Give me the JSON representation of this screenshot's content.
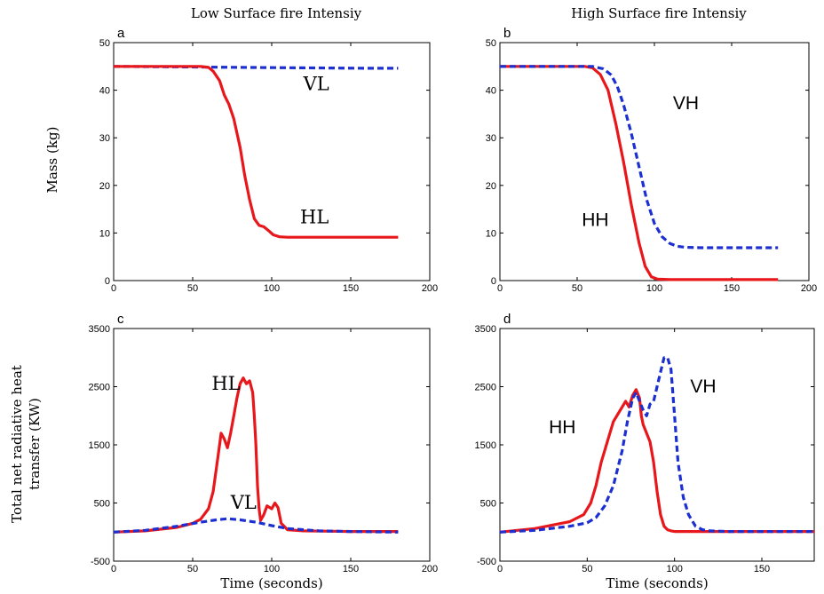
{
  "column_titles": [
    "Low Surface fire Intensiy",
    "High Surface fire Intensiy"
  ],
  "colors": {
    "red_series": "#e8171b",
    "blue_series": "#1c2fd1"
  },
  "chart_data": [
    {
      "id": "a",
      "type": "line",
      "panel_label": "a",
      "title": "",
      "xlabel": "",
      "ylabel": "Mass (kg)",
      "xlim": [
        0,
        200
      ],
      "ylim": [
        0,
        50
      ],
      "xticks": [
        0,
        50,
        100,
        150,
        200
      ],
      "yticks": [
        0,
        10,
        20,
        30,
        40,
        50
      ],
      "grid": false,
      "series": [
        {
          "label": "VL",
          "color": "#1c2fd1",
          "style": "dashed",
          "x": [
            0,
            40,
            80,
            120,
            160,
            180
          ],
          "y": [
            45,
            44.9,
            44.8,
            44.7,
            44.6,
            44.6
          ]
        },
        {
          "label": "HL",
          "color": "#e8171b",
          "style": "solid",
          "x": [
            0,
            40,
            55,
            60,
            63,
            67,
            70,
            73,
            76,
            80,
            83,
            86,
            89,
            92,
            95,
            98,
            101,
            105,
            110,
            130,
            150,
            180
          ],
          "y": [
            45,
            45,
            45,
            44.8,
            44,
            42,
            39,
            37,
            34,
            28,
            22,
            17,
            13,
            11.6,
            11.3,
            10.5,
            9.6,
            9.2,
            9.1,
            9.1,
            9.1,
            9.1
          ]
        }
      ],
      "annotations": [
        {
          "text": "VL",
          "x": 120,
          "y": 40,
          "font": "serif"
        },
        {
          "text": "HL",
          "x": 118,
          "y": 12,
          "font": "serif"
        }
      ]
    },
    {
      "id": "b",
      "type": "line",
      "panel_label": "b",
      "title": "",
      "xlabel": "",
      "ylabel": "",
      "xlim": [
        0,
        200
      ],
      "ylim": [
        0,
        50
      ],
      "xticks": [
        0,
        50,
        100,
        150,
        200
      ],
      "yticks": [
        0,
        10,
        20,
        30,
        40,
        50
      ],
      "grid": false,
      "series": [
        {
          "label": "HH",
          "color": "#e8171b",
          "style": "solid",
          "x": [
            0,
            45,
            55,
            60,
            65,
            70,
            75,
            80,
            85,
            90,
            94,
            98,
            102,
            110,
            130,
            180
          ],
          "y": [
            45,
            45,
            45,
            44.7,
            43.3,
            40,
            33,
            25,
            16,
            8,
            3,
            0.8,
            0.3,
            0.2,
            0.2,
            0.2
          ]
        },
        {
          "label": "VH",
          "color": "#1c2fd1",
          "style": "dashed",
          "x": [
            0,
            60,
            67,
            72,
            76,
            80,
            85,
            90,
            95,
            100,
            105,
            110,
            115,
            120,
            130,
            150,
            180
          ],
          "y": [
            45,
            45,
            44.5,
            43.2,
            40.8,
            37,
            31,
            24,
            17,
            12,
            9.2,
            7.8,
            7.2,
            7,
            6.9,
            6.9,
            6.9
          ]
        }
      ],
      "annotations": [
        {
          "text": "VH",
          "x": 112,
          "y": 36,
          "font": "sans"
        },
        {
          "text": "HH",
          "x": 53,
          "y": 11.5,
          "font": "sans"
        }
      ]
    },
    {
      "id": "c",
      "type": "line",
      "panel_label": "c",
      "title": "",
      "xlabel": "Time (seconds)",
      "ylabel": "Total net radiative heat transfer (KW)",
      "ylabel_lines": [
        "Total net radiative heat",
        "transfer (KW)"
      ],
      "xlim": [
        0,
        200
      ],
      "ylim": [
        -500,
        3500
      ],
      "xticks": [
        0,
        50,
        100,
        150,
        200
      ],
      "yticks": [
        -500,
        500,
        1500,
        2500,
        3500
      ],
      "grid": false,
      "series": [
        {
          "label": "HL",
          "color": "#e8171b",
          "style": "solid",
          "x": [
            0,
            20,
            40,
            50,
            55,
            60,
            63,
            65,
            67,
            68,
            70,
            72,
            74,
            76,
            78,
            80,
            82,
            84,
            86,
            88,
            89,
            90,
            91,
            92,
            93,
            95,
            97,
            100,
            102,
            104,
            106,
            110,
            120,
            150,
            180
          ],
          "y": [
            0,
            20,
            80,
            150,
            220,
            400,
            700,
            1100,
            1500,
            1700,
            1600,
            1450,
            1700,
            2000,
            2300,
            2550,
            2650,
            2550,
            2600,
            2400,
            2000,
            1500,
            800,
            400,
            200,
            300,
            450,
            400,
            500,
            420,
            150,
            40,
            20,
            10,
            10
          ]
        },
        {
          "label": "VL",
          "color": "#1c2fd1",
          "style": "dashed",
          "x": [
            0,
            20,
            40,
            55,
            65,
            72,
            80,
            90,
            100,
            110,
            130,
            150,
            180
          ],
          "y": [
            0,
            30,
            100,
            170,
            210,
            230,
            210,
            170,
            110,
            60,
            20,
            10,
            0
          ]
        }
      ],
      "annotations": [
        {
          "text": "HL",
          "x": 62,
          "y": 2450,
          "font": "serif"
        },
        {
          "text": "VL",
          "x": 74,
          "y": 400,
          "font": "serif"
        }
      ]
    },
    {
      "id": "d",
      "type": "line",
      "panel_label": "d",
      "title": "",
      "xlabel": "Time (seconds)",
      "ylabel": "",
      "xlim": [
        0,
        180
      ],
      "ylim": [
        -500,
        3500
      ],
      "xticks": [
        0,
        50,
        100,
        150
      ],
      "yticks": [
        -500,
        500,
        1500,
        2500,
        3500
      ],
      "grid": false,
      "series": [
        {
          "label": "HH",
          "color": "#e8171b",
          "style": "solid",
          "x": [
            0,
            20,
            40,
            48,
            52,
            55,
            58,
            62,
            65,
            68,
            70,
            72,
            74,
            76,
            78,
            80,
            81,
            82,
            84,
            86,
            88,
            90,
            92,
            94,
            96,
            98,
            100,
            105,
            120,
            150,
            180
          ],
          "y": [
            0,
            60,
            180,
            300,
            500,
            800,
            1200,
            1600,
            1900,
            2050,
            2150,
            2250,
            2150,
            2350,
            2450,
            2300,
            2000,
            1850,
            1700,
            1550,
            1200,
            700,
            300,
            100,
            40,
            20,
            10,
            10,
            10,
            10,
            10
          ]
        },
        {
          "label": "VH",
          "color": "#1c2fd1",
          "style": "dashed",
          "x": [
            0,
            20,
            40,
            50,
            55,
            60,
            65,
            70,
            73,
            76,
            78,
            80,
            82,
            84,
            86,
            88,
            90,
            92,
            94,
            96,
            98,
            100,
            102,
            105,
            108,
            112,
            116,
            120,
            130,
            150,
            180
          ],
          "y": [
            0,
            30,
            100,
            160,
            250,
            450,
            800,
            1400,
            1900,
            2300,
            2400,
            2250,
            2100,
            2000,
            2200,
            2250,
            2500,
            2750,
            3000,
            3000,
            2800,
            2000,
            1200,
            600,
            300,
            100,
            40,
            20,
            10,
            10,
            10
          ]
        }
      ],
      "annotations": [
        {
          "text": "VH",
          "x": 109,
          "y": 2400,
          "font": "sans"
        },
        {
          "text": "HH",
          "x": 28,
          "y": 1700,
          "font": "sans"
        }
      ]
    }
  ]
}
